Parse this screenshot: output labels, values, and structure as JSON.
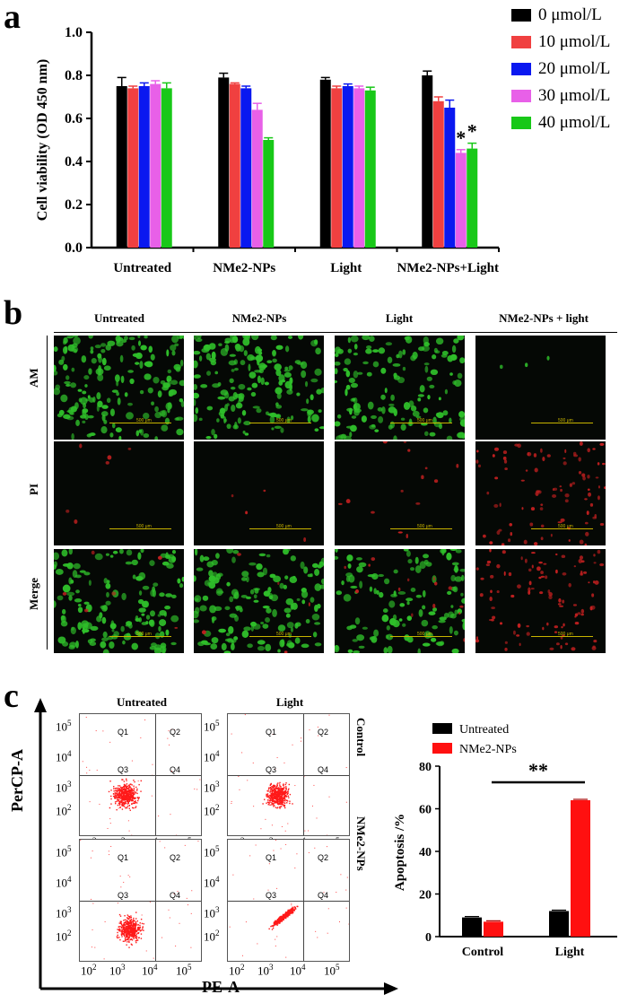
{
  "panel_a": {
    "letter": "a",
    "legend": [
      {
        "label": "0 μmol/L",
        "color": "#000000"
      },
      {
        "label": "10 μmol/L",
        "color": "#f04040"
      },
      {
        "label": "20 μmol/L",
        "color": "#0a18f0"
      },
      {
        "label": "30 μmol/L",
        "color": "#e860e8"
      },
      {
        "label": "40 μmol/L",
        "color": "#18c818"
      }
    ]
  },
  "panel_b": {
    "letter": "b",
    "columns": [
      "Untreated",
      "NMe2-NPs",
      "Light",
      "NMe2-NPs + light"
    ],
    "rows": [
      "AM",
      "PI",
      "Merge"
    ],
    "scale_text": "500 μm"
  },
  "panel_c": {
    "letter": "c",
    "flow_titles": [
      "Untreated",
      "Light"
    ],
    "flow_row_labels": [
      "Control",
      "NMe2-NPs"
    ],
    "quadrants": [
      "Q1",
      "Q2",
      "Q3",
      "Q4"
    ],
    "y_axis_title": "PerCP-A",
    "x_axis_title": "PE-A",
    "tick_labels": [
      "10",
      "10",
      "10",
      "10"
    ],
    "tick_exponents": [
      "2",
      "3",
      "4",
      "5"
    ],
    "legend": [
      {
        "label": "Untreated",
        "color": "#000000"
      },
      {
        "label": "NMe2-NPs",
        "color": "#ff1010"
      }
    ],
    "significance": "**"
  },
  "chart_data": [
    {
      "type": "bar",
      "categories": [
        "Untreated",
        "NMe2-NPs",
        "Light",
        "NMe2-NPs+Light"
      ],
      "ylabel": "Cell viability (OD 450 nm)",
      "xlabel": "",
      "ylim": [
        0.0,
        1.0
      ],
      "yticks": [
        "0.0",
        "0.2",
        "0.4",
        "0.6",
        "0.8",
        "1.0"
      ],
      "series": [
        {
          "name": "0 μmol/L",
          "color": "#000000",
          "values": [
            0.75,
            0.79,
            0.78,
            0.8
          ],
          "errors": [
            0.04,
            0.02,
            0.01,
            0.02
          ]
        },
        {
          "name": "10 μmol/L",
          "color": "#f04040",
          "values": [
            0.74,
            0.76,
            0.74,
            0.68
          ],
          "errors": [
            0.01,
            0.005,
            0.01,
            0.02
          ]
        },
        {
          "name": "20 μmol/L",
          "color": "#0a18f0",
          "values": [
            0.75,
            0.74,
            0.75,
            0.65
          ],
          "errors": [
            0.015,
            0.01,
            0.01,
            0.035
          ]
        },
        {
          "name": "30 μmol/L",
          "color": "#e860e8",
          "values": [
            0.76,
            0.64,
            0.74,
            0.44
          ],
          "errors": [
            0.015,
            0.03,
            0.01,
            0.015
          ]
        },
        {
          "name": "40 μmol/L",
          "color": "#18c818",
          "values": [
            0.74,
            0.5,
            0.73,
            0.46
          ],
          "errors": [
            0.025,
            0.01,
            0.015,
            0.025
          ]
        }
      ],
      "annotations": [
        "*",
        "*"
      ]
    },
    {
      "type": "bar",
      "categories": [
        "Control",
        "Light"
      ],
      "ylabel": "Apoptosis /%",
      "xlabel": "",
      "ylim": [
        0,
        80
      ],
      "yticks": [
        "0",
        "20",
        "40",
        "60",
        "80"
      ],
      "series": [
        {
          "name": "Untreated",
          "color": "#000000",
          "values": [
            9,
            12
          ]
        },
        {
          "name": "NMe2-NPs",
          "color": "#ff1010",
          "values": [
            7,
            64
          ]
        }
      ],
      "annotations": [
        "**"
      ]
    }
  ]
}
